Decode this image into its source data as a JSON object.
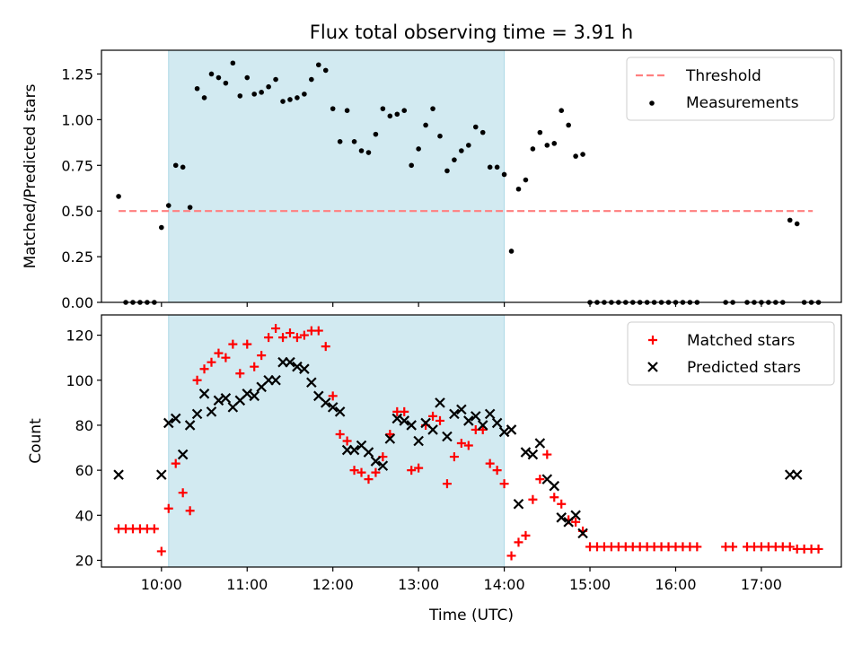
{
  "title": "Flux total observing time = 3.91 h",
  "xlabel": "Time (UTC)",
  "colors": {
    "shade": "#add8e6",
    "threshold": "#ff7f7f",
    "measurements": "#000000",
    "matched": "#ff0000",
    "predicted": "#000000"
  },
  "chart_data": [
    {
      "type": "scatter",
      "ylabel": "Matched/Predicted stars",
      "ylim": [
        0,
        1.38
      ],
      "yticks": [
        0,
        0.25,
        0.5,
        0.75,
        1.0,
        1.25
      ],
      "ytick_labels": [
        "0.00",
        "0.25",
        "0.50",
        "0.75",
        "1.00",
        "1.25"
      ],
      "xticks": [
        "10:00",
        "11:00",
        "12:00",
        "13:00",
        "14:00",
        "15:00",
        "16:00",
        "17:00"
      ],
      "xlim": [
        "09:18",
        "17:56"
      ],
      "shaded_span": [
        "10:05",
        "14:00"
      ],
      "threshold": {
        "name": "Threshold",
        "value": 0.5,
        "x_range": [
          "09:30",
          "17:36"
        ]
      },
      "legend": {
        "position": "top-right",
        "entries": [
          "Threshold",
          "Measurements"
        ]
      },
      "series": [
        {
          "name": "Measurements",
          "marker": "dot",
          "points": [
            [
              "09:30",
              0.58
            ],
            [
              "09:35",
              0
            ],
            [
              "09:40",
              0
            ],
            [
              "09:45",
              0
            ],
            [
              "09:50",
              0
            ],
            [
              "09:55",
              0
            ],
            [
              "10:00",
              0.41
            ],
            [
              "10:05",
              0.53
            ],
            [
              "10:10",
              0.75
            ],
            [
              "10:15",
              0.74
            ],
            [
              "10:20",
              0.52
            ],
            [
              "10:25",
              1.17
            ],
            [
              "10:30",
              1.12
            ],
            [
              "10:35",
              1.25
            ],
            [
              "10:40",
              1.23
            ],
            [
              "10:45",
              1.2
            ],
            [
              "10:50",
              1.31
            ],
            [
              "10:55",
              1.13
            ],
            [
              "11:00",
              1.23
            ],
            [
              "11:05",
              1.14
            ],
            [
              "11:10",
              1.15
            ],
            [
              "11:15",
              1.18
            ],
            [
              "11:20",
              1.22
            ],
            [
              "11:25",
              1.1
            ],
            [
              "11:30",
              1.11
            ],
            [
              "11:35",
              1.12
            ],
            [
              "11:40",
              1.14
            ],
            [
              "11:45",
              1.22
            ],
            [
              "11:50",
              1.3
            ],
            [
              "11:55",
              1.27
            ],
            [
              "12:00",
              1.06
            ],
            [
              "12:05",
              0.88
            ],
            [
              "12:10",
              1.05
            ],
            [
              "12:15",
              0.88
            ],
            [
              "12:20",
              0.83
            ],
            [
              "12:25",
              0.82
            ],
            [
              "12:30",
              0.92
            ],
            [
              "12:35",
              1.06
            ],
            [
              "12:40",
              1.02
            ],
            [
              "12:45",
              1.03
            ],
            [
              "12:50",
              1.05
            ],
            [
              "12:55",
              0.75
            ],
            [
              "13:00",
              0.84
            ],
            [
              "13:05",
              0.97
            ],
            [
              "13:10",
              1.06
            ],
            [
              "13:15",
              0.91
            ],
            [
              "13:20",
              0.72
            ],
            [
              "13:25",
              0.78
            ],
            [
              "13:30",
              0.83
            ],
            [
              "13:35",
              0.86
            ],
            [
              "13:40",
              0.96
            ],
            [
              "13:45",
              0.93
            ],
            [
              "13:50",
              0.74
            ],
            [
              "13:55",
              0.74
            ],
            [
              "14:00",
              0.7
            ],
            [
              "14:05",
              0.28
            ],
            [
              "14:10",
              0.62
            ],
            [
              "14:15",
              0.67
            ],
            [
              "14:20",
              0.84
            ],
            [
              "14:25",
              0.93
            ],
            [
              "14:30",
              0.86
            ],
            [
              "14:35",
              0.87
            ],
            [
              "14:40",
              1.05
            ],
            [
              "14:45",
              0.97
            ],
            [
              "14:50",
              0.8
            ],
            [
              "14:55",
              0.81
            ],
            [
              "15:00",
              0
            ],
            [
              "15:05",
              0
            ],
            [
              "15:10",
              0
            ],
            [
              "15:15",
              0
            ],
            [
              "15:20",
              0
            ],
            [
              "15:25",
              0
            ],
            [
              "15:30",
              0
            ],
            [
              "15:35",
              0
            ],
            [
              "15:40",
              0
            ],
            [
              "15:45",
              0
            ],
            [
              "15:50",
              0
            ],
            [
              "15:55",
              0
            ],
            [
              "16:00",
              0
            ],
            [
              "16:05",
              0
            ],
            [
              "16:10",
              0
            ],
            [
              "16:15",
              0
            ],
            [
              "16:35",
              0
            ],
            [
              "16:40",
              0
            ],
            [
              "16:50",
              0
            ],
            [
              "16:55",
              0
            ],
            [
              "17:00",
              0
            ],
            [
              "17:05",
              0
            ],
            [
              "17:10",
              0
            ],
            [
              "17:15",
              0
            ],
            [
              "17:20",
              0.45
            ],
            [
              "17:25",
              0.43
            ],
            [
              "17:30",
              0
            ],
            [
              "17:35",
              0
            ],
            [
              "17:40",
              0
            ]
          ]
        }
      ]
    },
    {
      "type": "scatter",
      "ylabel": "Count",
      "ylim": [
        17,
        129
      ],
      "yticks": [
        20,
        40,
        60,
        80,
        100,
        120
      ],
      "ytick_labels": [
        "20",
        "40",
        "60",
        "80",
        "100",
        "120"
      ],
      "xticks": [
        "10:00",
        "11:00",
        "12:00",
        "13:00",
        "14:00",
        "15:00",
        "16:00",
        "17:00"
      ],
      "xlim": [
        "09:18",
        "17:56"
      ],
      "shaded_span": [
        "10:05",
        "14:00"
      ],
      "legend": {
        "position": "top-right",
        "entries": [
          "Matched stars",
          "Predicted stars"
        ]
      },
      "series": [
        {
          "name": "Matched stars",
          "marker": "plus",
          "points": [
            [
              "09:30",
              34
            ],
            [
              "09:35",
              34
            ],
            [
              "09:40",
              34
            ],
            [
              "09:45",
              34
            ],
            [
              "09:50",
              34
            ],
            [
              "09:55",
              34
            ],
            [
              "10:00",
              24
            ],
            [
              "10:05",
              43
            ],
            [
              "10:10",
              63
            ],
            [
              "10:15",
              50
            ],
            [
              "10:20",
              42
            ],
            [
              "10:25",
              100
            ],
            [
              "10:30",
              105
            ],
            [
              "10:35",
              108
            ],
            [
              "10:40",
              112
            ],
            [
              "10:45",
              110
            ],
            [
              "10:50",
              116
            ],
            [
              "10:55",
              103
            ],
            [
              "11:00",
              116
            ],
            [
              "11:05",
              106
            ],
            [
              "11:10",
              111
            ],
            [
              "11:15",
              119
            ],
            [
              "11:20",
              123
            ],
            [
              "11:25",
              119
            ],
            [
              "11:30",
              121
            ],
            [
              "11:35",
              119
            ],
            [
              "11:40",
              120
            ],
            [
              "11:45",
              122
            ],
            [
              "11:50",
              122
            ],
            [
              "11:55",
              115
            ],
            [
              "12:00",
              93
            ],
            [
              "12:05",
              76
            ],
            [
              "12:10",
              73
            ],
            [
              "12:15",
              60
            ],
            [
              "12:20",
              59
            ],
            [
              "12:25",
              56
            ],
            [
              "12:30",
              59
            ],
            [
              "12:35",
              66
            ],
            [
              "12:40",
              76
            ],
            [
              "12:45",
              86
            ],
            [
              "12:50",
              86
            ],
            [
              "12:55",
              60
            ],
            [
              "13:00",
              61
            ],
            [
              "13:05",
              80
            ],
            [
              "13:10",
              84
            ],
            [
              "13:15",
              82
            ],
            [
              "13:20",
              54
            ],
            [
              "13:25",
              66
            ],
            [
              "13:30",
              72
            ],
            [
              "13:35",
              71
            ],
            [
              "13:40",
              78
            ],
            [
              "13:45",
              78
            ],
            [
              "13:50",
              63
            ],
            [
              "13:55",
              60
            ],
            [
              "14:00",
              54
            ],
            [
              "14:05",
              22
            ],
            [
              "14:10",
              28
            ],
            [
              "14:15",
              31
            ],
            [
              "14:20",
              47
            ],
            [
              "14:25",
              56
            ],
            [
              "14:30",
              67
            ],
            [
              "14:35",
              48
            ],
            [
              "14:40",
              45
            ],
            [
              "14:45",
              38
            ],
            [
              "14:50",
              37
            ],
            [
              "14:55",
              33
            ],
            [
              "15:00",
              26
            ],
            [
              "15:05",
              26
            ],
            [
              "15:10",
              26
            ],
            [
              "15:15",
              26
            ],
            [
              "15:20",
              26
            ],
            [
              "15:25",
              26
            ],
            [
              "15:30",
              26
            ],
            [
              "15:35",
              26
            ],
            [
              "15:40",
              26
            ],
            [
              "15:45",
              26
            ],
            [
              "15:50",
              26
            ],
            [
              "15:55",
              26
            ],
            [
              "16:00",
              26
            ],
            [
              "16:05",
              26
            ],
            [
              "16:10",
              26
            ],
            [
              "16:15",
              26
            ],
            [
              "16:35",
              26
            ],
            [
              "16:40",
              26
            ],
            [
              "16:50",
              26
            ],
            [
              "16:55",
              26
            ],
            [
              "17:00",
              26
            ],
            [
              "17:05",
              26
            ],
            [
              "17:10",
              26
            ],
            [
              "17:15",
              26
            ],
            [
              "17:20",
              26
            ],
            [
              "17:25",
              25
            ],
            [
              "17:30",
              25
            ],
            [
              "17:35",
              25
            ],
            [
              "17:40",
              25
            ]
          ]
        },
        {
          "name": "Predicted stars",
          "marker": "x",
          "points": [
            [
              "09:30",
              58
            ],
            [
              "10:00",
              58
            ],
            [
              "10:05",
              81
            ],
            [
              "10:10",
              83
            ],
            [
              "10:15",
              67
            ],
            [
              "10:20",
              80
            ],
            [
              "10:25",
              85
            ],
            [
              "10:30",
              94
            ],
            [
              "10:35",
              86
            ],
            [
              "10:40",
              91
            ],
            [
              "10:45",
              92
            ],
            [
              "10:50",
              88
            ],
            [
              "10:55",
              91
            ],
            [
              "11:00",
              94
            ],
            [
              "11:05",
              93
            ],
            [
              "11:10",
              97
            ],
            [
              "11:15",
              100
            ],
            [
              "11:20",
              100
            ],
            [
              "11:25",
              108
            ],
            [
              "11:30",
              108
            ],
            [
              "11:35",
              106
            ],
            [
              "11:40",
              105
            ],
            [
              "11:45",
              99
            ],
            [
              "11:50",
              93
            ],
            [
              "11:55",
              90
            ],
            [
              "12:00",
              88
            ],
            [
              "12:05",
              86
            ],
            [
              "12:10",
              69
            ],
            [
              "12:15",
              69
            ],
            [
              "12:20",
              71
            ],
            [
              "12:25",
              68
            ],
            [
              "12:30",
              64
            ],
            [
              "12:35",
              62
            ],
            [
              "12:40",
              74
            ],
            [
              "12:45",
              83
            ],
            [
              "12:50",
              82
            ],
            [
              "12:55",
              80
            ],
            [
              "13:00",
              73
            ],
            [
              "13:05",
              81
            ],
            [
              "13:10",
              78
            ],
            [
              "13:15",
              90
            ],
            [
              "13:20",
              75
            ],
            [
              "13:25",
              85
            ],
            [
              "13:30",
              87
            ],
            [
              "13:35",
              82
            ],
            [
              "13:40",
              84
            ],
            [
              "13:45",
              80
            ],
            [
              "13:50",
              85
            ],
            [
              "13:55",
              81
            ],
            [
              "14:00",
              77
            ],
            [
              "14:05",
              78
            ],
            [
              "14:10",
              45
            ],
            [
              "14:15",
              68
            ],
            [
              "14:20",
              67
            ],
            [
              "14:25",
              72
            ],
            [
              "14:30",
              56
            ],
            [
              "14:35",
              53
            ],
            [
              "14:40",
              39
            ],
            [
              "14:45",
              37
            ],
            [
              "14:50",
              40
            ],
            [
              "14:55",
              32
            ],
            [
              "17:20",
              58
            ],
            [
              "17:25",
              58
            ]
          ]
        }
      ]
    }
  ]
}
